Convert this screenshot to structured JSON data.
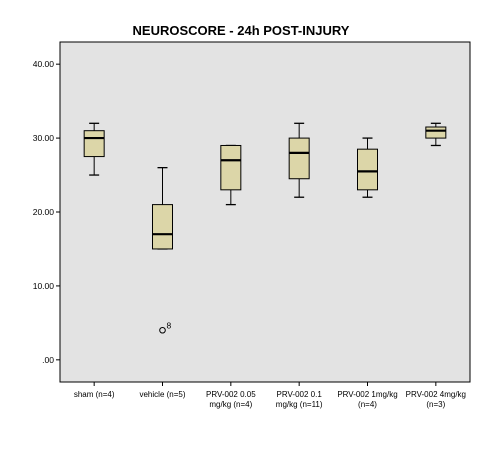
{
  "chart_data": {
    "type": "boxplot",
    "title": "NEUROSCORE - 24h POST-INJURY",
    "xlabel": "",
    "ylabel": "",
    "ylim": [
      -3,
      43
    ],
    "yticks": [
      0,
      10,
      20,
      30,
      40
    ],
    "ytick_labels": [
      ".00",
      "10.00",
      "20.00",
      "30.00",
      "40.00"
    ],
    "grid": false,
    "colors": {
      "plot_background": "#e3e3e3",
      "box_fill": "#dcd6a8",
      "stroke": "#000000"
    },
    "categories": [
      [
        "sham (n=4)"
      ],
      [
        "vehicle (n=5)"
      ],
      [
        "PRV-002 0.05",
        "mg/kg (n=4)"
      ],
      [
        "PRV-002 0.1",
        "mg/kg (n=11)"
      ],
      [
        "PRV-002 1mg/kg",
        "(n=4)"
      ],
      [
        "PRV-002 4mg/kg",
        "(n=3)"
      ]
    ],
    "boxes": [
      {
        "min": 25,
        "q1": 27.5,
        "median": 30,
        "q3": 31,
        "max": 32,
        "outliers": []
      },
      {
        "min": 15,
        "q1": 15,
        "median": 17,
        "q3": 21,
        "max": 26,
        "outliers": [
          {
            "value": 4,
            "label": "8"
          }
        ]
      },
      {
        "min": 21,
        "q1": 23,
        "median": 27,
        "q3": 29,
        "max": 29,
        "outliers": []
      },
      {
        "min": 22,
        "q1": 24.5,
        "median": 28,
        "q3": 30,
        "max": 32,
        "outliers": []
      },
      {
        "min": 22,
        "q1": 23,
        "median": 25.5,
        "q3": 28.5,
        "max": 30,
        "outliers": []
      },
      {
        "min": 29,
        "q1": 30,
        "median": 31,
        "q3": 31.5,
        "max": 32,
        "outliers": []
      }
    ]
  }
}
